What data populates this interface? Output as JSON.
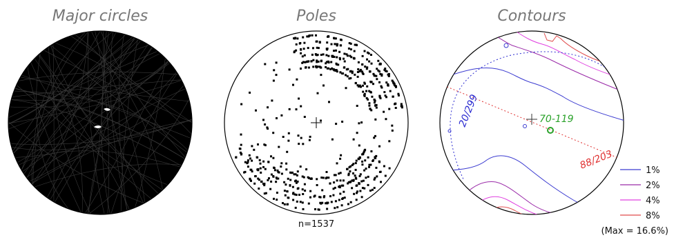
{
  "panels": {
    "major_circles": {
      "title": "Major circles"
    },
    "poles": {
      "title": "Poles",
      "count_label": "n=1537"
    },
    "contours": {
      "title": "Contours",
      "annotations": {
        "mean_pole": "70-119",
        "best_fit_plane": "88/203",
        "girdle_plane": "20/299"
      },
      "legend": [
        {
          "label": "1%",
          "color": "#3a3ad0"
        },
        {
          "label": "2%",
          "color": "#9a2aa8"
        },
        {
          "label": "4%",
          "color": "#e040e0"
        },
        {
          "label": "8%",
          "color": "#e04a4a"
        }
      ],
      "max_label": "(Max = 16.6%)"
    }
  },
  "colors": {
    "title_gray": "#777777",
    "annot_green": "#2aa22a",
    "annot_red": "#e03030",
    "annot_blue": "#2a2ad0"
  }
}
